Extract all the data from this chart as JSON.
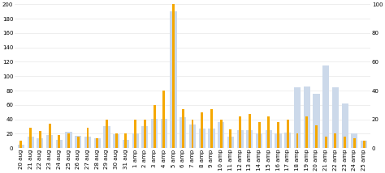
{
  "categories": [
    "20 aug",
    "21 aug",
    "22 aug",
    "23 aug",
    "24 aug",
    "25 aug",
    "26 aug",
    "27 aug",
    "28 aug",
    "29 aug",
    "30 aug",
    "31 aug",
    "1 amp",
    "2 amp",
    "3 amp",
    "4 amp",
    "5 amp",
    "6 amp",
    "7 amp",
    "8 amp",
    "9 amp",
    "10 amp",
    "11 amp",
    "12 amp",
    "13 amp",
    "14 amp",
    "15 amp",
    "16 amp",
    "17 amp",
    "18 amp",
    "19 amp",
    "20 amp",
    "21 amp",
    "22 amp",
    "23 amp",
    "24 amp",
    "25 amp"
  ],
  "blue_values": [
    5,
    16,
    14,
    18,
    11,
    23,
    17,
    16,
    14,
    31,
    19,
    12,
    21,
    31,
    41,
    41,
    190,
    43,
    33,
    27,
    27,
    36,
    16,
    25,
    25,
    20,
    25,
    20,
    22,
    85,
    86,
    76,
    115,
    85,
    62,
    20,
    10
  ],
  "orange_values": [
    5,
    14,
    12,
    17,
    9,
    10,
    8,
    14,
    7,
    20,
    10,
    10,
    20,
    20,
    30,
    40,
    100,
    27,
    20,
    25,
    27,
    20,
    13,
    22,
    24,
    18,
    22,
    18,
    20,
    10,
    22,
    16,
    8,
    10,
    8,
    7,
    5
  ],
  "blue_color": "#ccd9ea",
  "orange_color": "#f5a800",
  "left_ylim": [
    0,
    200
  ],
  "right_ylim": [
    0,
    100
  ],
  "left_yticks": [
    0,
    20,
    40,
    60,
    80,
    100,
    120,
    140,
    160,
    180,
    200
  ],
  "right_yticks": [
    0,
    20,
    40,
    60,
    80,
    100
  ],
  "grid_color": "#e8e8e8",
  "background_color": "#ffffff",
  "tick_fontsize": 5.0,
  "blue_bar_width": 0.7,
  "orange_bar_width": 0.25
}
